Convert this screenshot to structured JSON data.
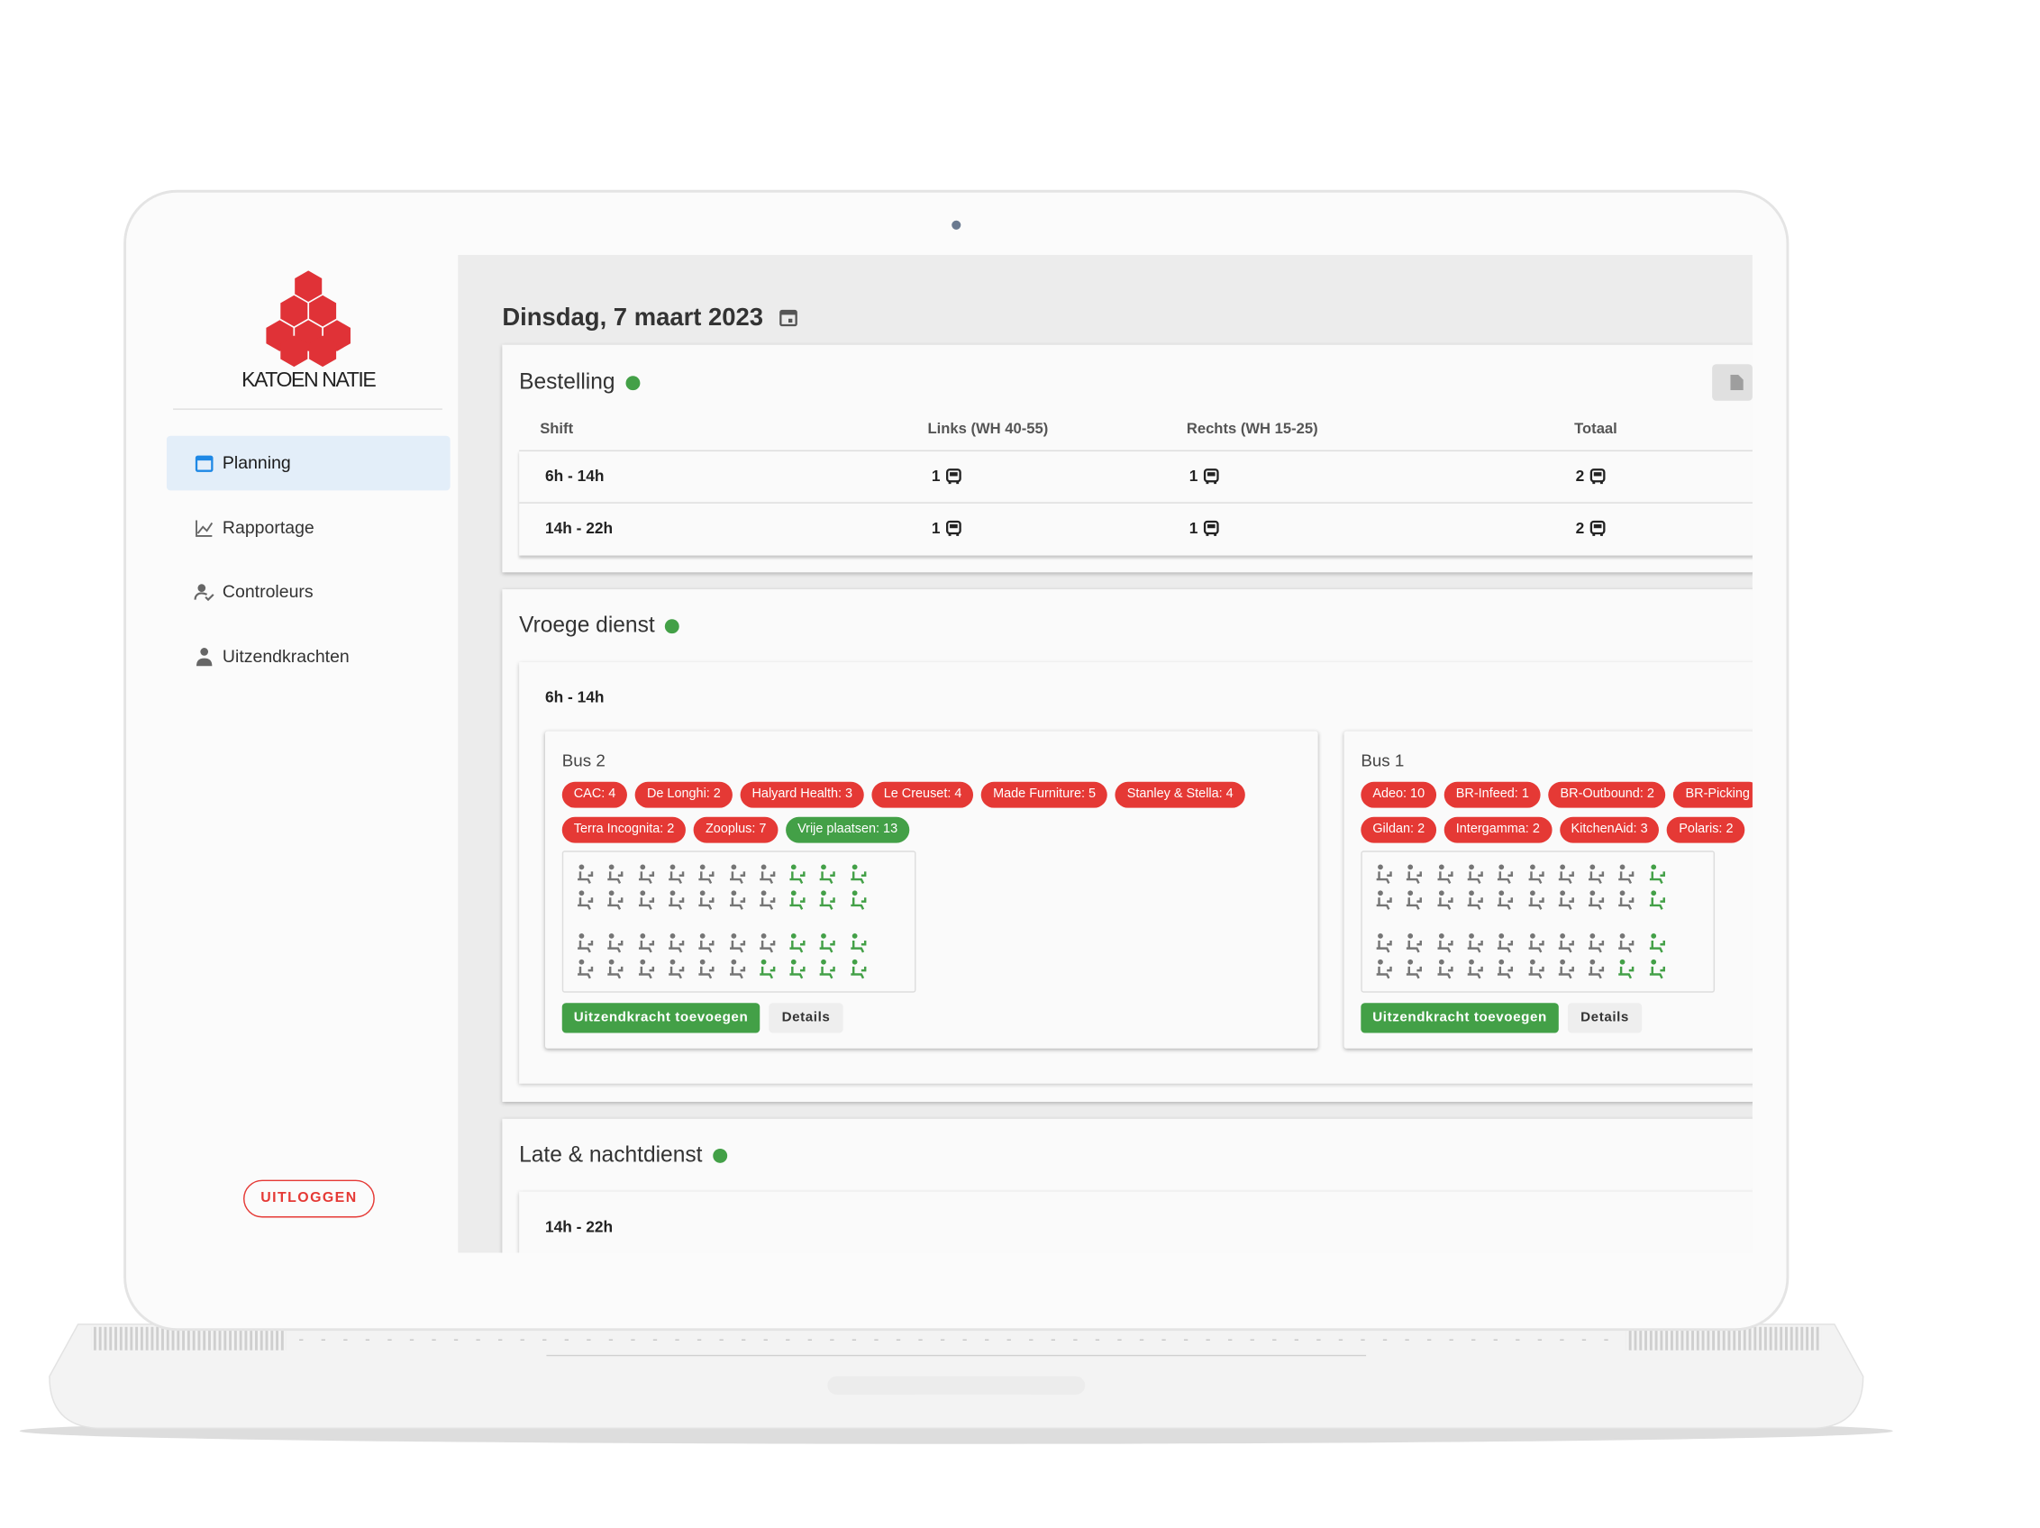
{
  "sidebar": {
    "logo": "KATOEN NATIE",
    "nav": [
      "Planning",
      "Rapportage",
      "Controleurs",
      "Uitzendkrachten"
    ],
    "active": 0,
    "logout": "UITLOGGEN"
  },
  "header": {
    "date": "Dinsdag, 7 maart 2023"
  },
  "bestelling": {
    "title": "Bestelling",
    "columns": [
      "Shift",
      "Links (WH 40-55)",
      "Rechts (WH 15-25)",
      "Totaal"
    ],
    "rows": [
      [
        "6h - 14h",
        "1",
        "1",
        "2"
      ],
      [
        "14h - 22h",
        "1",
        "1",
        "2"
      ]
    ]
  },
  "sections": [
    {
      "title": "Vroege dienst",
      "shift": "6h - 14h",
      "buses": [
        {
          "name": "Bus 2",
          "tag_rows": [
            [
              {
                "label": "CAC: 4",
                "color": "#e53935"
              },
              {
                "label": "De Longhi: 2",
                "color": "#e53935"
              },
              {
                "label": "Halyard Health: 3",
                "color": "#e53935"
              },
              {
                "label": "Le Creuset: 4",
                "color": "#e53935"
              },
              {
                "label": "Made Furniture: 5",
                "color": "#e53935"
              },
              {
                "label": "Stanley & Stella: 4",
                "color": "#e53935"
              }
            ],
            [
              {
                "label": "Terra Incognita: 2",
                "color": "#e53935"
              },
              {
                "label": "Zooplus: 7",
                "color": "#e53935"
              },
              {
                "label": "Vrije plaatsen: 13",
                "color": "#43a047"
              }
            ]
          ],
          "add_button": "Uitzendkracht toevoegen",
          "details_button": "Details"
        },
        {
          "name": "Bus 1",
          "tag_rows": [
            [
              {
                "label": "Adeo: 10",
                "color": "#e53935"
              },
              {
                "label": "BR-Infeed: 1",
                "color": "#e53935"
              },
              {
                "label": "BR-Outbound: 2",
                "color": "#e53935"
              },
              {
                "label": "BR-Picking",
                "color": "#e53935"
              }
            ],
            [
              {
                "label": "Gildan: 2",
                "color": "#e53935"
              },
              {
                "label": "Intergamma: 2",
                "color": "#e53935"
              },
              {
                "label": "KitchenAid: 3",
                "color": "#e53935"
              },
              {
                "label": "Polaris: 2",
                "color": "#e53935"
              }
            ]
          ],
          "add_button": "Uitzendkracht toevoegen",
          "details_button": "Details"
        }
      ]
    },
    {
      "title": "Late & nachtdienst",
      "shift": "14h - 22h"
    }
  ]
}
